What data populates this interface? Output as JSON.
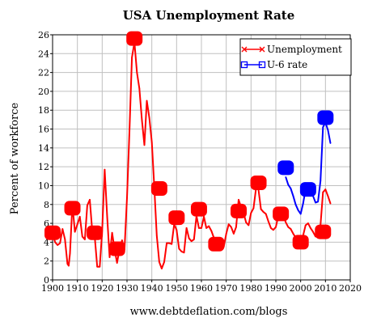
{
  "chart_data": {
    "type": "line",
    "title": "USA Unemployment Rate",
    "ylabel": "Percent of workforce",
    "xlabel": "www.debtdeflation.com/blogs",
    "xlim": [
      1900,
      2020
    ],
    "ylim": [
      0,
      26
    ],
    "xticks": [
      1900,
      1910,
      1920,
      1930,
      1940,
      1950,
      1960,
      1970,
      1980,
      1990,
      2000,
      2010,
      2020
    ],
    "yticks": [
      0,
      2,
      4,
      6,
      8,
      10,
      12,
      14,
      16,
      18,
      20,
      22,
      24,
      26
    ],
    "grid": true,
    "legend": "top-right",
    "series": [
      {
        "name": "Unemployment",
        "color": "#ff0000",
        "marker": "x",
        "x": [
          1900,
          1901,
          1902,
          1903,
          1904,
          1905,
          1906,
          1906.5,
          1907,
          1908,
          1909,
          1910,
          1911,
          1912,
          1913,
          1914,
          1915,
          1916,
          1917,
          1918,
          1919,
          1920,
          1921,
          1922,
          1923,
          1924,
          1925,
          1926,
          1927,
          1928,
          1929,
          1930,
          1931,
          1932,
          1933,
          1934,
          1935,
          1936,
          1937,
          1938,
          1939,
          1940,
          1941,
          1942,
          1943,
          1944,
          1945,
          1946,
          1947,
          1948,
          1949,
          1950,
          1951,
          1952,
          1953,
          1954,
          1955,
          1956,
          1957,
          1958,
          1959,
          1960,
          1961,
          1962,
          1963,
          1964,
          1965,
          1966,
          1967,
          1968,
          1969,
          1970,
          1971,
          1972,
          1973,
          1974,
          1975,
          1976,
          1977,
          1978,
          1979,
          1980,
          1981,
          1982,
          1983,
          1984,
          1985,
          1986,
          1987,
          1988,
          1989,
          1990,
          1991,
          1992,
          1993,
          1994,
          1995,
          1996,
          1997,
          1998,
          1999,
          2000,
          2001,
          2002,
          2003,
          2004,
          2005,
          2006,
          2007,
          2008,
          2009,
          2010,
          2011,
          2012
        ],
        "values": [
          5.0,
          4.0,
          3.7,
          3.9,
          5.4,
          4.3,
          1.7,
          1.5,
          2.8,
          8.0,
          5.1,
          5.9,
          6.7,
          4.6,
          4.3,
          7.9,
          8.5,
          5.1,
          4.6,
          1.4,
          1.4,
          5.2,
          11.7,
          6.7,
          2.4,
          5.0,
          3.2,
          1.8,
          3.3,
          4.2,
          3.2,
          8.7,
          15.9,
          23.6,
          25.2,
          22.0,
          20.3,
          17.0,
          14.3,
          19.0,
          17.2,
          14.6,
          9.9,
          4.7,
          1.9,
          1.2,
          1.9,
          3.9,
          3.9,
          3.8,
          5.9,
          5.3,
          3.3,
          3.0,
          2.9,
          5.5,
          4.4,
          4.1,
          4.3,
          6.8,
          5.5,
          5.5,
          6.7,
          5.5,
          5.7,
          5.2,
          4.5,
          3.8,
          3.8,
          3.6,
          3.5,
          4.9,
          5.9,
          5.6,
          4.9,
          5.6,
          8.5,
          7.7,
          7.1,
          6.1,
          5.8,
          7.1,
          7.6,
          9.7,
          9.6,
          7.5,
          7.2,
          7.0,
          6.2,
          5.5,
          5.3,
          5.6,
          6.8,
          7.5,
          6.9,
          6.1,
          5.6,
          5.4,
          4.9,
          4.5,
          4.2,
          4.0,
          4.7,
          5.8,
          6.0,
          5.5,
          5.1,
          4.6,
          4.6,
          5.8,
          9.3,
          9.6,
          8.9,
          8.1
        ]
      },
      {
        "name": "U-6 rate",
        "color": "#0000ff",
        "marker": "square",
        "x": [
          1994,
          1995,
          1996,
          1997,
          1998,
          1999,
          2000,
          2001,
          2002,
          2003,
          2004,
          2005,
          2006,
          2007,
          2008,
          2009,
          2010,
          2011,
          2012
        ],
        "values": [
          10.9,
          10.1,
          9.7,
          8.9,
          8.0,
          7.4,
          7.0,
          8.1,
          9.6,
          10.1,
          9.6,
          8.9,
          8.2,
          8.3,
          10.5,
          16.2,
          16.7,
          15.9,
          14.5
        ]
      }
    ],
    "highlight_points": [
      {
        "x": 1900,
        "y": 5.0,
        "series": "Unemployment"
      },
      {
        "x": 1908,
        "y": 7.6,
        "series": "Unemployment"
      },
      {
        "x": 1917,
        "y": 5.0,
        "series": "Unemployment"
      },
      {
        "x": 1926,
        "y": 3.3,
        "series": "Unemployment"
      },
      {
        "x": 1933,
        "y": 25.6,
        "series": "Unemployment"
      },
      {
        "x": 1943,
        "y": 9.7,
        "series": "Unemployment"
      },
      {
        "x": 1950,
        "y": 6.6,
        "series": "Unemployment"
      },
      {
        "x": 1959,
        "y": 7.5,
        "series": "Unemployment"
      },
      {
        "x": 1966,
        "y": 3.8,
        "series": "Unemployment"
      },
      {
        "x": 1975,
        "y": 7.3,
        "series": "Unemployment"
      },
      {
        "x": 1983,
        "y": 10.3,
        "series": "Unemployment"
      },
      {
        "x": 1992,
        "y": 7.0,
        "series": "Unemployment"
      },
      {
        "x": 2000,
        "y": 4.0,
        "series": "Unemployment"
      },
      {
        "x": 2009,
        "y": 5.1,
        "series": "Unemployment"
      },
      {
        "x": 1994,
        "y": 11.9,
        "series": "U-6 rate"
      },
      {
        "x": 2003,
        "y": 9.6,
        "series": "U-6 rate"
      },
      {
        "x": 2010,
        "y": 17.2,
        "series": "U-6 rate"
      }
    ]
  }
}
